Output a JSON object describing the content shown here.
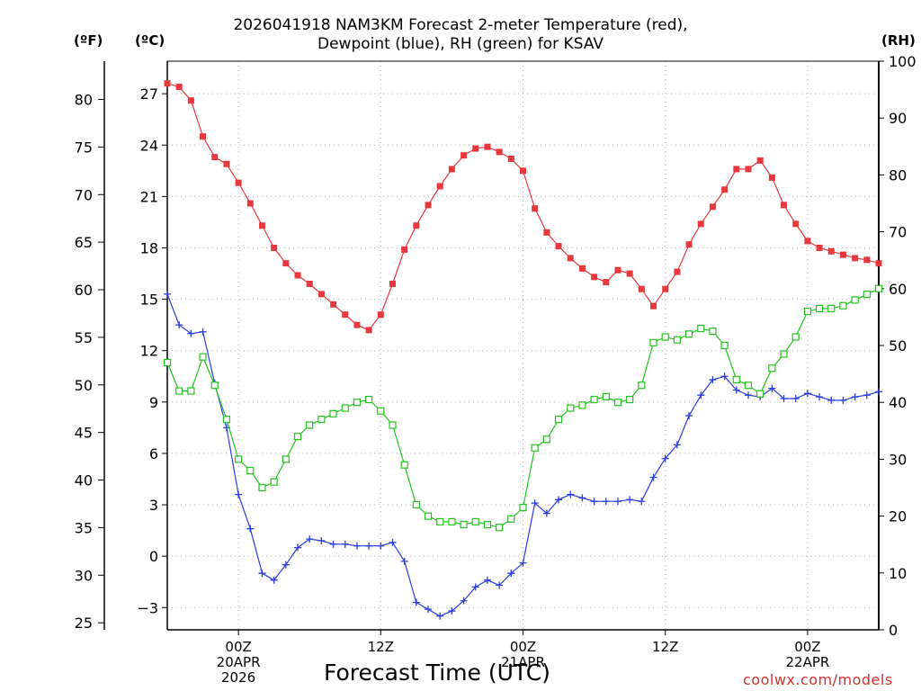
{
  "chart_data": {
    "type": "line",
    "title_line1": "2026041918 NAM3KM Forecast 2-meter Temperature (red),",
    "title_line2": "Dewpoint (blue), RH (green) for KSAV",
    "xlabel": "Forecast Time (UTC)",
    "credit": "coolwx.com/models",
    "unit_left_f": "(ºF)",
    "unit_left_c": "(ºC)",
    "unit_right": "(RH)",
    "x_start_hour": -6,
    "x_end_hour": 54,
    "x_ticks": [
      {
        "hour": 0,
        "lines": [
          "00Z",
          "20APR",
          "2026"
        ]
      },
      {
        "hour": 12,
        "lines": [
          "12Z"
        ]
      },
      {
        "hour": 24,
        "lines": [
          "00Z",
          "21APR"
        ]
      },
      {
        "hour": 36,
        "lines": [
          "12Z"
        ]
      },
      {
        "hour": 48,
        "lines": [
          "00Z",
          "22APR"
        ]
      }
    ],
    "c_axis": {
      "min": -4.3,
      "max": 28.9,
      "ticks": [
        -3,
        0,
        3,
        6,
        9,
        12,
        15,
        18,
        21,
        24,
        27
      ]
    },
    "f_axis": {
      "ticks": [
        25,
        30,
        35,
        40,
        45,
        50,
        55,
        60,
        65,
        70,
        75,
        80
      ]
    },
    "rh_axis": {
      "min": 0,
      "max": 100,
      "ticks": [
        0,
        10,
        20,
        30,
        40,
        50,
        60,
        70,
        80,
        90,
        100
      ]
    },
    "hours": [
      -6,
      -5,
      -4,
      -3,
      -2,
      -1,
      0,
      1,
      2,
      3,
      4,
      5,
      6,
      7,
      8,
      9,
      10,
      11,
      12,
      13,
      14,
      15,
      16,
      17,
      18,
      19,
      20,
      21,
      22,
      23,
      24,
      25,
      26,
      27,
      28,
      29,
      30,
      31,
      32,
      33,
      34,
      35,
      36,
      37,
      38,
      39,
      40,
      41,
      42,
      43,
      44,
      45,
      46,
      47,
      48,
      49,
      50,
      51,
      52,
      53,
      54
    ],
    "series": [
      {
        "name": "Temperature (°C)",
        "color": "#e8383d",
        "marker": "filled-square",
        "axis": "c",
        "values": [
          27.6,
          27.4,
          26.6,
          24.5,
          23.3,
          22.9,
          21.8,
          20.6,
          19.3,
          18.0,
          17.1,
          16.4,
          15.9,
          15.3,
          14.7,
          14.1,
          13.5,
          13.2,
          14.1,
          15.9,
          17.9,
          19.3,
          20.5,
          21.6,
          22.6,
          23.4,
          23.8,
          23.9,
          23.6,
          23.2,
          22.5,
          20.3,
          18.9,
          18.1,
          17.4,
          16.8,
          16.3,
          16.0,
          16.7,
          16.5,
          15.6,
          14.6,
          15.6,
          16.6,
          18.2,
          19.4,
          20.4,
          21.4,
          22.6,
          22.6,
          23.1,
          22.1,
          20.5,
          19.4,
          18.4,
          18.0,
          17.8,
          17.6,
          17.4,
          17.3,
          17.1
        ]
      },
      {
        "name": "Dewpoint (°C)",
        "color": "#2a3de0",
        "marker": "plus",
        "axis": "c",
        "values": [
          15.3,
          13.5,
          13.0,
          13.1,
          10.1,
          7.5,
          3.6,
          1.6,
          -1.0,
          -1.4,
          -0.5,
          0.5,
          1.0,
          0.9,
          0.7,
          0.7,
          0.6,
          0.6,
          0.6,
          0.8,
          -0.3,
          -2.7,
          -3.1,
          -3.5,
          -3.2,
          -2.6,
          -1.8,
          -1.4,
          -1.7,
          -1.0,
          -0.4,
          3.1,
          2.5,
          3.3,
          3.6,
          3.4,
          3.2,
          3.2,
          3.2,
          3.3,
          3.2,
          4.6,
          5.7,
          6.5,
          8.2,
          9.4,
          10.3,
          10.5,
          9.7,
          9.4,
          9.3,
          9.8,
          9.2,
          9.2,
          9.5,
          9.3,
          9.1,
          9.1,
          9.3,
          9.4,
          9.6
        ]
      },
      {
        "name": "RH (%)",
        "color": "#22c41c",
        "marker": "open-square",
        "axis": "rh",
        "values": [
          47,
          42,
          42,
          48,
          43,
          37,
          30,
          28,
          25,
          26,
          30,
          34,
          36,
          37,
          38,
          39,
          40,
          40.5,
          38.5,
          36,
          29,
          22,
          20,
          19,
          19,
          18.5,
          19,
          18.5,
          18,
          19.5,
          21.5,
          32,
          33.5,
          37,
          39,
          39.5,
          40.5,
          41,
          40,
          40.5,
          43,
          50.5,
          51.5,
          51,
          52,
          53,
          52.5,
          50,
          44,
          43,
          41.5,
          46,
          48.5,
          51.5,
          56,
          56.5,
          56.5,
          57,
          58,
          59,
          60
        ]
      }
    ]
  }
}
